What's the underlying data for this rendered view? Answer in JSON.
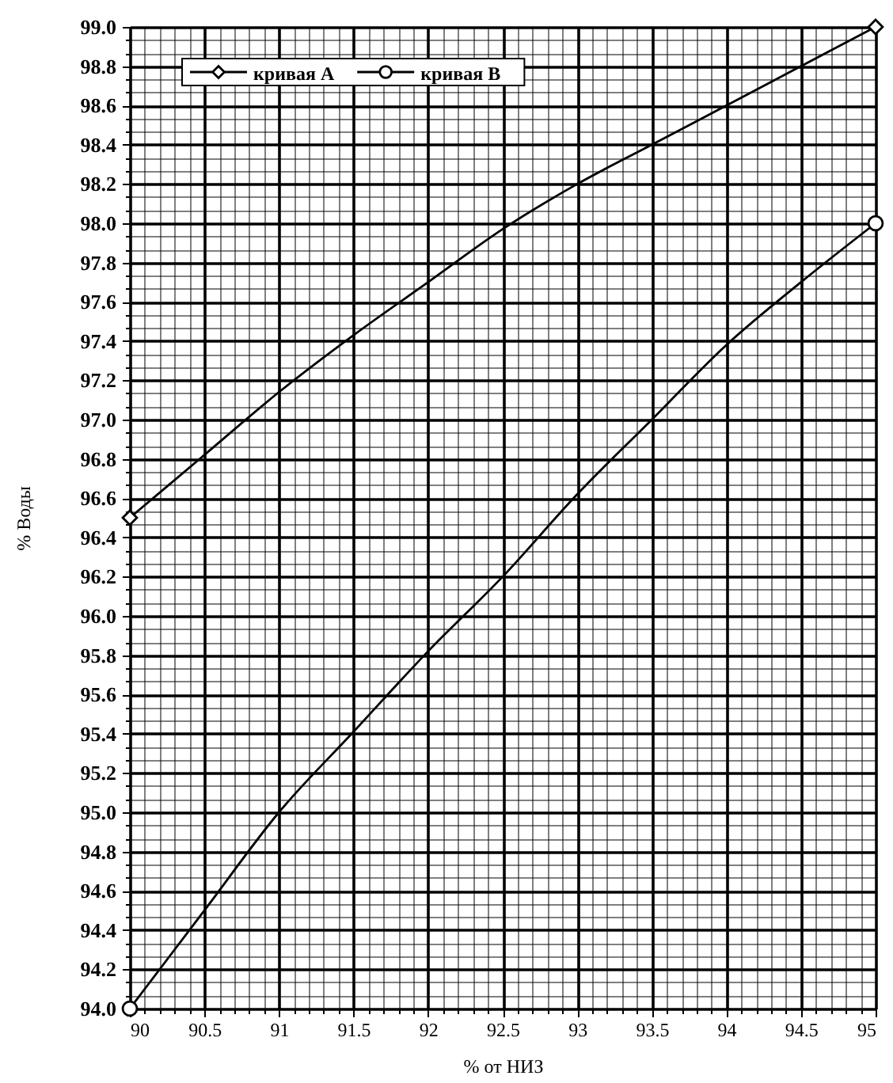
{
  "chart_data": {
    "type": "line",
    "xlabel": "% от НИЗ",
    "ylabel": "% Воды",
    "xlim": [
      90,
      95
    ],
    "ylim": [
      94,
      99
    ],
    "xticks": [
      90,
      {
        "value": 90.1,
        "label": null
      },
      {
        "value": 90.2,
        "label": null
      },
      {
        "value": 90.3,
        "label": null
      },
      {
        "value": 90.4,
        "label": null
      },
      90.5,
      {
        "value": 90.6,
        "label": null
      },
      {
        "value": 90.7,
        "label": null
      },
      {
        "value": 90.8,
        "label": null
      },
      {
        "value": 90.9,
        "label": null
      },
      91,
      {
        "value": 91.1,
        "label": null
      },
      {
        "value": 91.2,
        "label": null
      },
      {
        "value": 91.3,
        "label": null
      },
      {
        "value": 91.4,
        "label": null
      },
      91.5,
      {
        "value": 91.6,
        "label": null
      },
      {
        "value": 91.7,
        "label": null
      },
      {
        "value": 91.8,
        "label": null
      },
      {
        "value": 91.9,
        "label": null
      },
      92,
      {
        "value": 92.1,
        "label": null
      },
      {
        "value": 92.2,
        "label": null
      },
      {
        "value": 92.3,
        "label": null
      },
      {
        "value": 92.4,
        "label": null
      },
      92.5,
      {
        "value": 92.6,
        "label": null
      },
      {
        "value": 92.7,
        "label": null
      },
      {
        "value": 92.8,
        "label": null
      },
      {
        "value": 92.9,
        "label": null
      },
      93,
      {
        "value": 93.1,
        "label": null
      },
      {
        "value": 93.2,
        "label": null
      },
      {
        "value": 93.3,
        "label": null
      },
      {
        "value": 93.4,
        "label": null
      },
      93.5,
      {
        "value": 93.6,
        "label": null
      },
      {
        "value": 93.7,
        "label": null
      },
      {
        "value": 93.8,
        "label": null
      },
      {
        "value": 93.9,
        "label": null
      },
      94,
      {
        "value": 94.1,
        "label": null
      },
      {
        "value": 94.2,
        "label": null
      },
      {
        "value": 94.3,
        "label": null
      },
      {
        "value": 94.4,
        "label": null
      },
      94.5,
      {
        "value": 94.6,
        "label": null
      },
      {
        "value": 94.7,
        "label": null
      },
      {
        "value": 94.8,
        "label": null
      },
      {
        "value": 94.9,
        "label": null
      },
      95
    ],
    "yticks": [
      {
        "value": 94,
        "label": "94.0"
      },
      {
        "value": 94.0667,
        "label": null
      },
      {
        "value": 94.1333,
        "label": null
      },
      94.2,
      {
        "value": 94.2667,
        "label": null
      },
      {
        "value": 94.3333,
        "label": null
      },
      94.4,
      {
        "value": 94.4667,
        "label": null
      },
      {
        "value": 94.5333,
        "label": null
      },
      94.6,
      {
        "value": 94.6667,
        "label": null
      },
      {
        "value": 94.7333,
        "label": null
      },
      94.8,
      {
        "value": 94.8667,
        "label": null
      },
      {
        "value": 94.9333,
        "label": null
      },
      {
        "value": 95,
        "label": "95.0"
      },
      {
        "value": 95.0667,
        "label": null
      },
      {
        "value": 95.1333,
        "label": null
      },
      95.2,
      {
        "value": 95.2667,
        "label": null
      },
      {
        "value": 95.3333,
        "label": null
      },
      95.4,
      {
        "value": 95.4667,
        "label": null
      },
      {
        "value": 95.5333,
        "label": null
      },
      95.6,
      {
        "value": 95.6667,
        "label": null
      },
      {
        "value": 95.7333,
        "label": null
      },
      95.8,
      {
        "value": 95.8667,
        "label": null
      },
      {
        "value": 95.9333,
        "label": null
      },
      {
        "value": 96,
        "label": "96.0"
      },
      {
        "value": 96.0667,
        "label": null
      },
      {
        "value": 96.1333,
        "label": null
      },
      96.2,
      {
        "value": 96.2667,
        "label": null
      },
      {
        "value": 96.3333,
        "label": null
      },
      96.4,
      {
        "value": 96.4667,
        "label": null
      },
      {
        "value": 96.5333,
        "label": null
      },
      96.6,
      {
        "value": 96.6667,
        "label": null
      },
      {
        "value": 96.7333,
        "label": null
      },
      96.8,
      {
        "value": 96.8667,
        "label": null
      },
      {
        "value": 96.9333,
        "label": null
      },
      {
        "value": 97,
        "label": "97.0"
      },
      {
        "value": 97.0667,
        "label": null
      },
      {
        "value": 97.1333,
        "label": null
      },
      97.2,
      {
        "value": 97.2667,
        "label": null
      },
      {
        "value": 97.3333,
        "label": null
      },
      97.4,
      {
        "value": 97.4667,
        "label": null
      },
      {
        "value": 97.5333,
        "label": null
      },
      97.6,
      {
        "value": 97.6667,
        "label": null
      },
      {
        "value": 97.7333,
        "label": null
      },
      97.8,
      {
        "value": 97.8667,
        "label": null
      },
      {
        "value": 97.9333,
        "label": null
      },
      {
        "value": 98,
        "label": "98.0"
      },
      {
        "value": 98.0667,
        "label": null
      },
      {
        "value": 98.1333,
        "label": null
      },
      98.2,
      {
        "value": 98.2667,
        "label": null
      },
      {
        "value": 98.3333,
        "label": null
      },
      98.4,
      {
        "value": 98.4667,
        "label": null
      },
      {
        "value": 98.5333,
        "label": null
      },
      98.6,
      {
        "value": 98.6667,
        "label": null
      },
      {
        "value": 98.7333,
        "label": null
      },
      98.8,
      {
        "value": 98.8667,
        "label": null
      },
      {
        "value": 98.9333,
        "label": null
      },
      {
        "value": 99,
        "label": "99.0"
      }
    ],
    "grid": true,
    "legend": "top left",
    "series": [
      {
        "name": "кривая A",
        "color": "#000000",
        "x": [
          90,
          90.5,
          91,
          91.5,
          92,
          92.5,
          93,
          93.5,
          94,
          94.5,
          95
        ],
        "values": [
          96.5,
          96.82,
          97.14,
          97.43,
          97.7,
          97.97,
          98.2,
          98.4,
          98.6,
          98.8,
          99.0
        ]
      },
      {
        "name": "кривая B",
        "color": "#000000",
        "x": [
          90,
          90.5,
          91,
          91.5,
          92,
          92.5,
          93,
          93.5,
          94,
          94.5,
          95
        ],
        "values": [
          94.0,
          94.5,
          95.0,
          95.41,
          95.82,
          96.2,
          96.62,
          97.0,
          97.38,
          97.7,
          98.0
        ]
      },
      {
        "type": "scatter",
        "marker": "diamond",
        "color": "#000000",
        "x": [
          90,
          95
        ],
        "values": [
          96.5,
          99.0
        ]
      },
      {
        "type": "scatter",
        "marker": "circle",
        "color": "#000000",
        "x": [
          90,
          95
        ],
        "values": [
          94.0,
          98.0
        ]
      }
    ]
  }
}
